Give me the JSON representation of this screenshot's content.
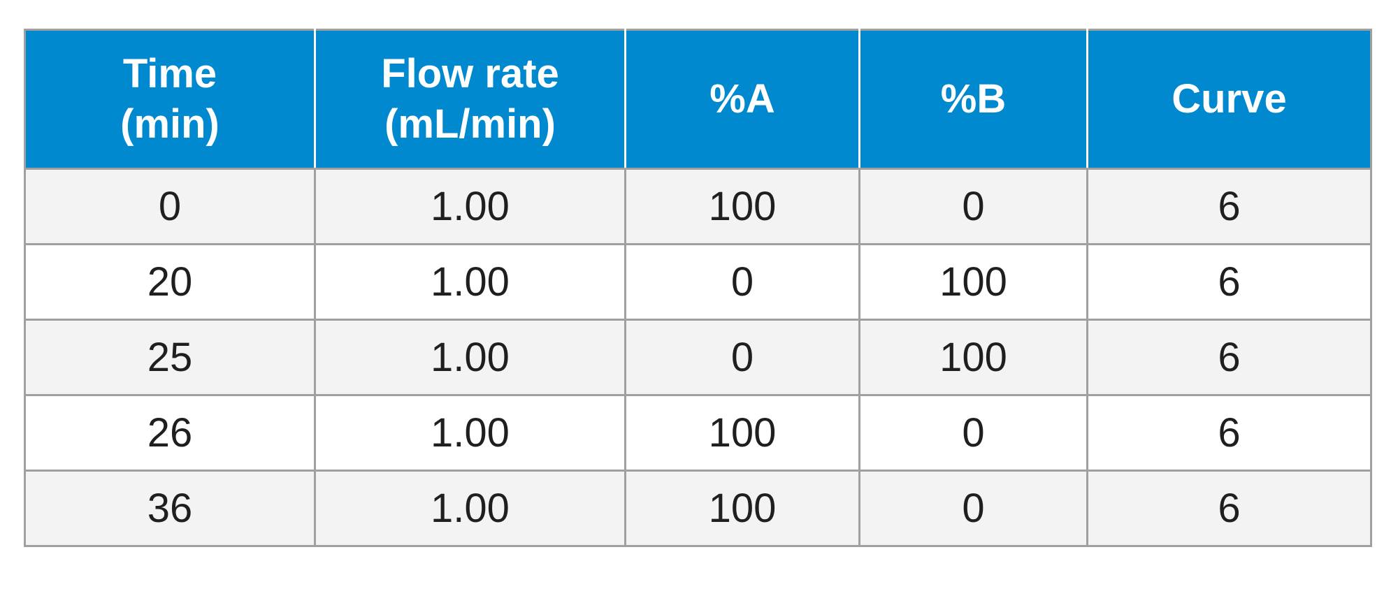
{
  "table": {
    "headers": [
      [
        "Time",
        "(min)"
      ],
      [
        "Flow rate",
        "(mL/min)"
      ],
      [
        "%A"
      ],
      [
        "%B"
      ],
      [
        "Curve"
      ]
    ],
    "rows": [
      [
        "0",
        "1.00",
        "100",
        "0",
        "6"
      ],
      [
        "20",
        "1.00",
        "0",
        "100",
        "6"
      ],
      [
        "25",
        "1.00",
        "0",
        "100",
        "6"
      ],
      [
        "26",
        "1.00",
        "100",
        "0",
        "6"
      ],
      [
        "36",
        "1.00",
        "100",
        "0",
        "6"
      ]
    ]
  },
  "colors": {
    "header_background": "#0089cf",
    "header_text": "#ffffff",
    "striped_row_background": "#f3f3f4",
    "grid_lines": "#a0a0a0"
  }
}
